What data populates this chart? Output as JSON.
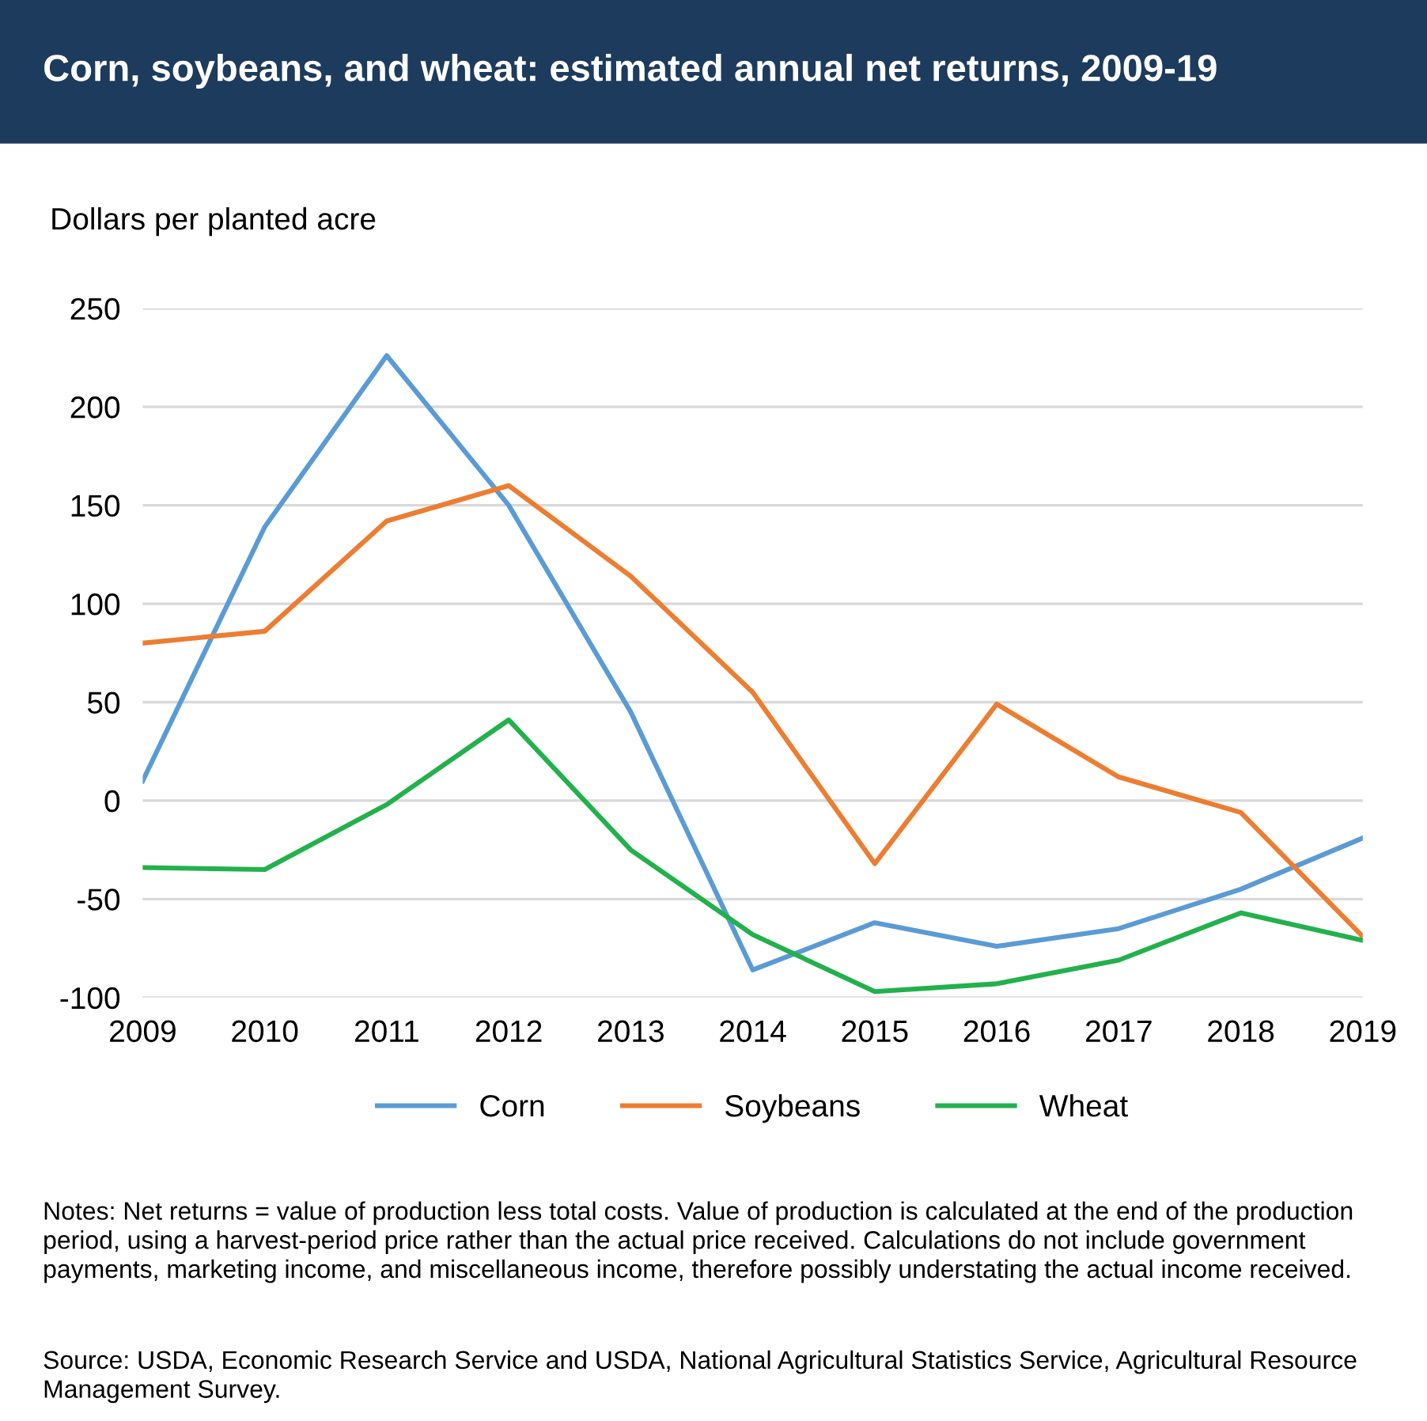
{
  "chart_data": {
    "type": "line",
    "title": "Corn, soybeans, and wheat: estimated annual net returns, 2009-19",
    "ylabel": "Dollars per planted acre",
    "x": [
      2009,
      2010,
      2011,
      2012,
      2013,
      2014,
      2015,
      2016,
      2017,
      2018,
      2019
    ],
    "series": [
      {
        "name": "Corn",
        "color": "#5b9bd5",
        "values": [
          10,
          139,
          226,
          150,
          45,
          -86,
          -62,
          -74,
          -65,
          -45,
          -19
        ]
      },
      {
        "name": "Soybeans",
        "color": "#ed7d31",
        "values": [
          80,
          86,
          142,
          160,
          114,
          55,
          -32,
          49,
          12,
          -6,
          -69
        ]
      },
      {
        "name": "Wheat",
        "color": "#22b14c",
        "values": [
          -34,
          -35,
          -2,
          41,
          -25,
          -68,
          -97,
          -93,
          -81,
          -57,
          -71
        ]
      }
    ],
    "xlim": [
      2009,
      2019
    ],
    "xticks": [
      2009,
      2010,
      2011,
      2012,
      2013,
      2014,
      2015,
      2016,
      2017,
      2018,
      2019
    ],
    "ylim": [
      -100,
      250
    ],
    "yticks": [
      -100,
      -50,
      0,
      50,
      100,
      150,
      200,
      250
    ],
    "grid": "y",
    "legend": "bottom",
    "marker": "none",
    "line_style": "solid",
    "annotations": [
      "Notes: Net returns = value of production less total costs. Value of production is calculated at the end of the production period, using a harvest-period price rather than the actual price received. Calculations do not include government payments, marketing income, and miscellaneous income, therefore possibly understating the actual income received.",
      "Source: USDA, Economic Research Service and USDA, National Agricultural Statistics Service, Agricultural Resource Management Survey."
    ]
  }
}
